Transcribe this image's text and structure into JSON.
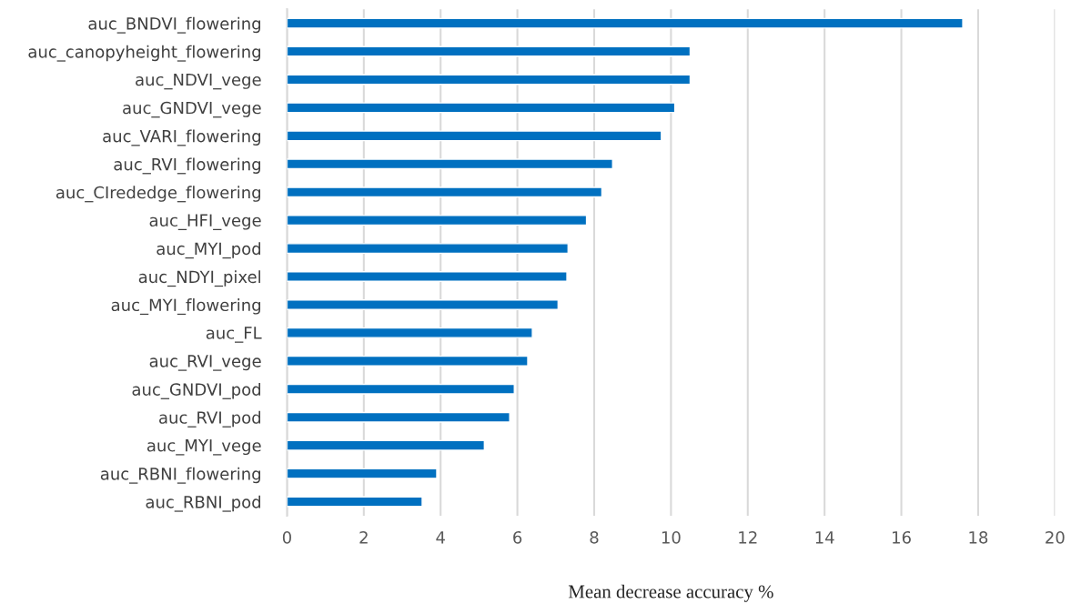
{
  "chart_data": {
    "type": "bar",
    "orientation": "horizontal",
    "xlabel": "Mean decrease accuracy %",
    "categories": [
      "auc_BNDVI_flowering",
      "auc_canopyheight_flowering",
      "auc_NDVI_vege",
      "auc_GNDVI_vege",
      "auc_VARI_flowering",
      "auc_RVI_flowering",
      "auc_CIrededge_flowering",
      "auc_HFI_vege",
      "auc_MYI_pod",
      "auc_NDYI_pixel",
      "auc_MYI_flowering",
      "auc_FL",
      "auc_RVI_vege",
      "auc_GNDVI_pod",
      "auc_RVI_pod",
      "auc_MYI_vege",
      "auc_RBNI_flowering",
      "auc_RBNI_pod"
    ],
    "values": [
      17.6,
      10.5,
      10.5,
      10.1,
      9.75,
      8.48,
      8.2,
      7.8,
      7.32,
      7.29,
      7.06,
      6.39,
      6.27,
      5.92,
      5.8,
      5.14,
      3.9,
      3.52
    ],
    "color": "#0070c0",
    "xlim": [
      0,
      20
    ],
    "xticks": [
      0,
      2,
      4,
      6,
      8,
      10,
      12,
      14,
      16,
      18,
      20
    ],
    "grid": "x",
    "legend": false
  }
}
